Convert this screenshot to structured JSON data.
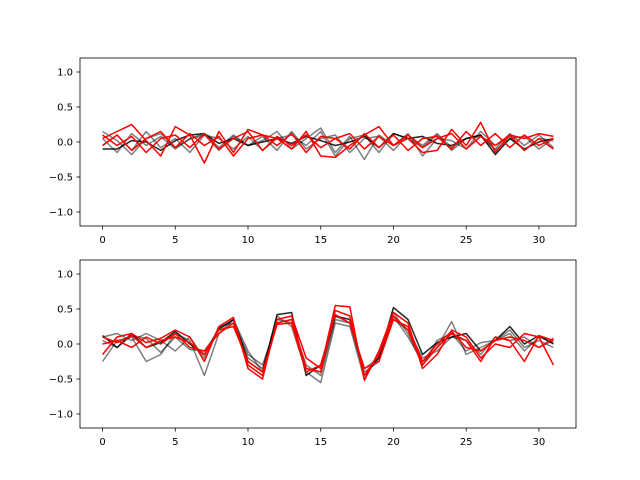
{
  "chart_data": [
    {
      "type": "line",
      "xlim": [
        -1.55,
        32.55
      ],
      "ylim": [
        -1.2,
        1.2
      ],
      "xticks": [
        0,
        5,
        10,
        15,
        20,
        25,
        30
      ],
      "yticks": [
        1.0,
        0.5,
        0.0,
        -0.5,
        -1.0
      ],
      "xtick_labels": [
        "0",
        "5",
        "10",
        "15",
        "20",
        "25",
        "30"
      ],
      "ytick_labels": [
        "1.0",
        "0.5",
        "0.0",
        "−0.5",
        "−1.0"
      ],
      "grid": false,
      "series": [
        {
          "color": "#000000",
          "opacity": 0.5,
          "values": [
            0.15,
            0.02,
            -0.18,
            0.05,
            0.12,
            -0.08,
            0.04,
            0.1,
            -0.12,
            0.08,
            -0.05,
            0.02,
            0.15,
            -0.1,
            0.05,
            0.2,
            -0.15,
            0.08,
            -0.25,
            0.1,
            -0.05,
            0.12,
            -0.2,
            0.05,
            0.02,
            -0.1,
            0.15,
            -0.05,
            0.08,
            -0.12,
            0.05,
            0.02
          ]
        },
        {
          "color": "#000000",
          "opacity": 0.5,
          "values": [
            -0.05,
            0.1,
            -0.12,
            0.15,
            -0.08,
            0.05,
            -0.15,
            0.1,
            0.05,
            -0.1,
            0.08,
            -0.12,
            0.05,
            0.1,
            -0.05,
            0.15,
            -0.2,
            0.05,
            0.1,
            -0.15,
            0.12,
            0.05,
            -0.08,
            0.1,
            -0.12,
            0.05,
            0.08,
            -0.1,
            0.12,
            -0.05,
            0.1,
            -0.08
          ]
        },
        {
          "color": "#000000",
          "opacity": 0.5,
          "values": [
            0.05,
            -0.15,
            0.12,
            -0.05,
            0.08,
            -0.1,
            0.05,
            0.12,
            -0.08,
            0.1,
            -0.05,
            0.08,
            -0.12,
            0.15,
            -0.1,
            0.05,
            0.1,
            -0.15,
            0.05,
            0.08,
            -0.12,
            0.1,
            -0.05,
            0.12,
            -0.08,
            0.05,
            0.1,
            -0.12,
            0.05,
            0.08,
            -0.1,
            0.05
          ]
        },
        {
          "color": "#000000",
          "opacity": 0.85,
          "values": [
            -0.1,
            -0.1,
            0.02,
            0.0,
            -0.12,
            0.02,
            0.1,
            0.12,
            -0.02,
            0.05,
            -0.05,
            0.0,
            0.05,
            -0.02,
            0.08,
            0.02,
            -0.05,
            0.0,
            0.08,
            -0.08,
            0.12,
            0.05,
            0.08,
            -0.02,
            -0.05,
            0.05,
            0.1,
            -0.18,
            0.05,
            -0.1,
            0.0,
            0.05
          ]
        },
        {
          "color": "#ff0000",
          "opacity": 1.0,
          "values": [
            0.05,
            0.15,
            0.25,
            0.02,
            -0.2,
            0.22,
            0.1,
            -0.3,
            0.15,
            -0.15,
            0.18,
            0.1,
            0.05,
            -0.1,
            0.15,
            -0.2,
            -0.22,
            -0.05,
            0.1,
            0.22,
            -0.05,
            0.05,
            -0.15,
            -0.12,
            0.18,
            -0.05,
            0.28,
            -0.15,
            0.1,
            0.05,
            0.12,
            0.08
          ]
        },
        {
          "color": "#ff0000",
          "opacity": 1.0,
          "values": [
            -0.05,
            0.1,
            -0.12,
            0.05,
            0.15,
            -0.08,
            0.12,
            -0.05,
            0.08,
            -0.2,
            0.05,
            0.1,
            -0.05,
            0.12,
            -0.15,
            0.08,
            0.05,
            -0.1,
            0.12,
            -0.08,
            0.1,
            -0.12,
            0.05,
            0.08,
            -0.1,
            0.15,
            -0.05,
            0.12,
            -0.08,
            0.1,
            -0.05,
            0.05
          ]
        },
        {
          "color": "#ff0000",
          "opacity": 1.0,
          "values": [
            0.1,
            -0.05,
            0.08,
            -0.15,
            0.05,
            0.1,
            -0.08,
            0.12,
            -0.1,
            0.05,
            0.15,
            -0.12,
            0.08,
            -0.05,
            0.1,
            -0.08,
            0.05,
            0.12,
            -0.1,
            0.08,
            -0.05,
            0.1,
            -0.08,
            0.05,
            0.12,
            -0.1,
            0.08,
            -0.05,
            0.1,
            -0.12,
            0.05,
            -0.1
          ]
        }
      ]
    },
    {
      "type": "line",
      "xlim": [
        -1.55,
        32.55
      ],
      "ylim": [
        -1.2,
        1.2
      ],
      "xticks": [
        0,
        5,
        10,
        15,
        20,
        25,
        30
      ],
      "yticks": [
        1.0,
        0.5,
        0.0,
        -0.5,
        -1.0
      ],
      "xtick_labels": [
        "0",
        "5",
        "10",
        "15",
        "20",
        "25",
        "30"
      ],
      "ytick_labels": [
        "1.0",
        "0.5",
        "0.0",
        "−0.5",
        "−1.0"
      ],
      "grid": false,
      "series": [
        {
          "color": "#000000",
          "opacity": 0.5,
          "values": [
            -0.25,
            0.05,
            0.1,
            -0.25,
            -0.15,
            0.15,
            0.05,
            -0.45,
            0.15,
            0.35,
            -0.1,
            -0.4,
            0.4,
            0.25,
            -0.4,
            -0.55,
            0.3,
            0.25,
            -0.5,
            -0.15,
            0.4,
            0.1,
            -0.25,
            -0.05,
            0.32,
            -0.15,
            -0.05,
            0.05,
            0.2,
            -0.05,
            0.05,
            -0.05
          ]
        },
        {
          "color": "#000000",
          "opacity": 0.5,
          "values": [
            0.1,
            0.15,
            0.05,
            0.15,
            0.05,
            -0.1,
            0.1,
            -0.2,
            0.25,
            0.3,
            -0.15,
            -0.3,
            0.3,
            0.35,
            -0.35,
            -0.4,
            0.4,
            0.3,
            -0.35,
            -0.2,
            0.35,
            0.2,
            -0.2,
            -0.1,
            0.1,
            0.05,
            -0.15,
            0.1,
            0.05,
            0.1,
            -0.05,
            0.05
          ]
        },
        {
          "color": "#000000",
          "opacity": 0.5,
          "values": [
            0.05,
            -0.05,
            0.12,
            0.08,
            -0.12,
            0.1,
            -0.08,
            -0.1,
            0.2,
            0.35,
            -0.2,
            -0.35,
            0.35,
            0.3,
            -0.3,
            -0.45,
            0.35,
            0.3,
            -0.4,
            -0.25,
            0.45,
            0.15,
            -0.3,
            0.05,
            0.15,
            -0.1,
            0.02,
            0.05,
            0.15,
            -0.1,
            0.1,
            0.02
          ]
        },
        {
          "color": "#000000",
          "opacity": 0.85,
          "values": [
            0.12,
            -0.05,
            0.15,
            -0.05,
            0.02,
            0.18,
            0.0,
            -0.15,
            0.22,
            0.35,
            -0.25,
            -0.4,
            0.42,
            0.45,
            -0.45,
            -0.3,
            0.4,
            0.35,
            -0.45,
            -0.2,
            0.52,
            0.35,
            -0.15,
            0.02,
            0.1,
            0.15,
            -0.1,
            0.05,
            0.25,
            0.0,
            0.12,
            0.0
          ]
        },
        {
          "color": "#ff0000",
          "opacity": 1.0,
          "values": [
            -0.15,
            0.1,
            0.15,
            0.02,
            0.08,
            0.2,
            0.1,
            -0.25,
            0.25,
            0.38,
            -0.35,
            -0.5,
            0.35,
            0.4,
            -0.2,
            -0.35,
            0.55,
            0.53,
            -0.52,
            -0.1,
            0.45,
            0.3,
            -0.35,
            -0.15,
            0.2,
            0.1,
            -0.2,
            0.0,
            -0.05,
            0.15,
            0.1,
            -0.3
          ]
        },
        {
          "color": "#ff0000",
          "opacity": 1.0,
          "values": [
            0.0,
            0.05,
            -0.05,
            0.1,
            0.0,
            0.15,
            -0.05,
            -0.1,
            0.15,
            0.3,
            -0.3,
            -0.45,
            0.3,
            0.35,
            -0.35,
            -0.4,
            0.48,
            0.4,
            -0.45,
            -0.15,
            0.4,
            0.2,
            -0.3,
            -0.05,
            0.15,
            0.05,
            -0.25,
            0.1,
            0.05,
            -0.25,
            0.12,
            0.05
          ]
        },
        {
          "color": "#ff0000",
          "opacity": 1.0,
          "values": [
            0.1,
            0.02,
            0.12,
            -0.05,
            0.05,
            0.1,
            0.02,
            -0.15,
            0.2,
            0.25,
            -0.25,
            -0.4,
            0.28,
            0.3,
            -0.4,
            -0.3,
            0.42,
            0.3,
            -0.35,
            -0.25,
            0.35,
            0.25,
            -0.25,
            0.0,
            0.18,
            -0.05,
            -0.1,
            0.05,
            0.1,
            0.05,
            -0.05,
            0.08
          ]
        }
      ]
    }
  ]
}
